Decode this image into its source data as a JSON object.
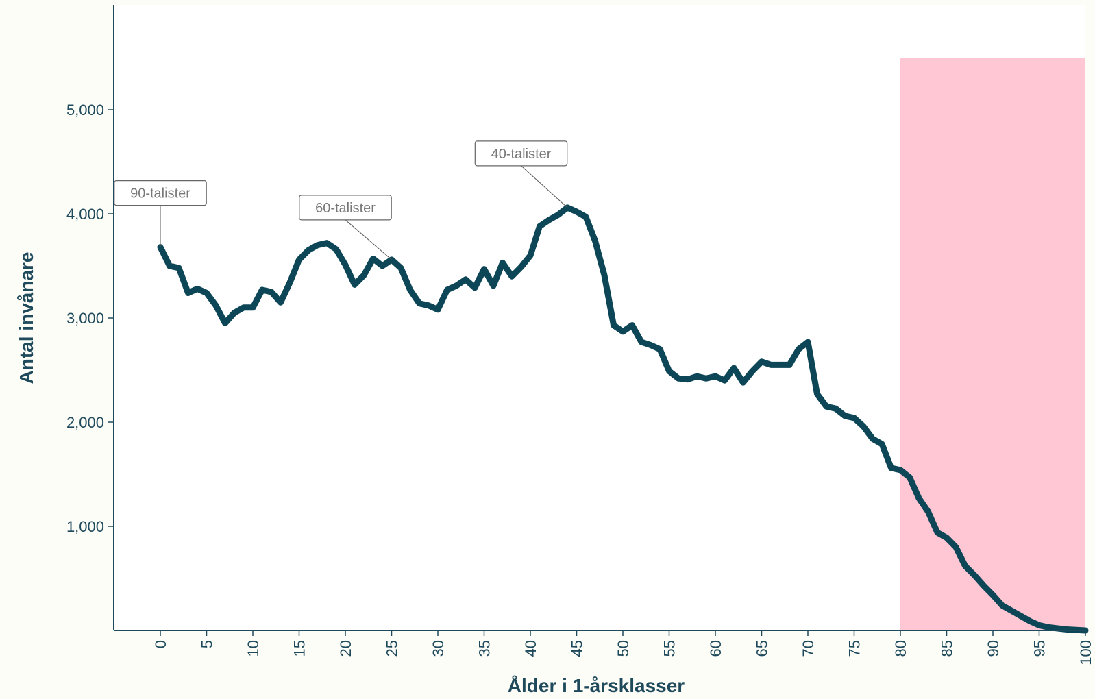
{
  "chart_data": {
    "type": "line",
    "title": "",
    "xlabel": "Ålder i 1-årsklasser",
    "ylabel": "Antal invånare",
    "xlim": [
      -5,
      100
    ],
    "ylim": [
      0,
      6000
    ],
    "x_ticks": [
      0,
      5,
      10,
      15,
      20,
      25,
      30,
      35,
      40,
      45,
      50,
      55,
      60,
      65,
      70,
      75,
      80,
      85,
      90,
      95,
      100
    ],
    "y_ticks": [
      1000,
      2000,
      3000,
      4000,
      5000
    ],
    "y_tick_labels": [
      "1,000",
      "2,000",
      "3,000",
      "4,000",
      "5,000"
    ],
    "grid": false,
    "highlight_band": {
      "x_from": 80,
      "x_to": 100,
      "y_top": 5500,
      "color": "#ffc7d3"
    },
    "line_color": "#0d4656",
    "series": [
      {
        "x": [
          0,
          1,
          2,
          3,
          4,
          5,
          6,
          7,
          8,
          9,
          10,
          11,
          12,
          13,
          14,
          15,
          16,
          17,
          18,
          19,
          20,
          21,
          22,
          23,
          24,
          25,
          26,
          27,
          28,
          29,
          30,
          31,
          32,
          33,
          34,
          35,
          36,
          37,
          38,
          39,
          40,
          41,
          42,
          43,
          44,
          45,
          46,
          47,
          48,
          49,
          50,
          51,
          52,
          53,
          54,
          55,
          56,
          57,
          58,
          59,
          60,
          61,
          62,
          63,
          64,
          65,
          66,
          67,
          68,
          69,
          70,
          71,
          72,
          73,
          74,
          75,
          76,
          77,
          78,
          79,
          80,
          81,
          82,
          83,
          84,
          85,
          86,
          87,
          88,
          89,
          90,
          91,
          92,
          93,
          94,
          95,
          96,
          97,
          98,
          99,
          100
        ],
        "values": [
          3680,
          3500,
          3480,
          3240,
          3280,
          3240,
          3120,
          2950,
          3050,
          3100,
          3100,
          3270,
          3250,
          3150,
          3340,
          3560,
          3650,
          3700,
          3720,
          3660,
          3510,
          3320,
          3410,
          3570,
          3500,
          3560,
          3480,
          3270,
          3140,
          3120,
          3080,
          3270,
          3310,
          3370,
          3290,
          3470,
          3310,
          3530,
          3400,
          3490,
          3600,
          3880,
          3940,
          3990,
          4060,
          4020,
          3970,
          3740,
          3410,
          2930,
          2870,
          2930,
          2770,
          2740,
          2700,
          2490,
          2420,
          2410,
          2440,
          2420,
          2440,
          2400,
          2520,
          2380,
          2490,
          2580,
          2550,
          2550,
          2550,
          2700,
          2770,
          2270,
          2150,
          2130,
          2060,
          2040,
          1960,
          1840,
          1790,
          1560,
          1540,
          1470,
          1270,
          1140,
          940,
          890,
          800,
          620,
          530,
          430,
          340,
          240,
          190,
          140,
          90,
          50,
          30,
          20,
          10,
          5,
          0
        ]
      }
    ],
    "annotations": [
      {
        "label": "90-talister",
        "x": 0,
        "y": 3680,
        "box_x": 0,
        "box_y": 4200
      },
      {
        "label": "60-talister",
        "x": 25,
        "y": 3560,
        "box_x": 20,
        "box_y": 4060
      },
      {
        "label": "40-talister",
        "x": 44,
        "y": 4060,
        "box_x": 39,
        "box_y": 4580
      }
    ]
  }
}
